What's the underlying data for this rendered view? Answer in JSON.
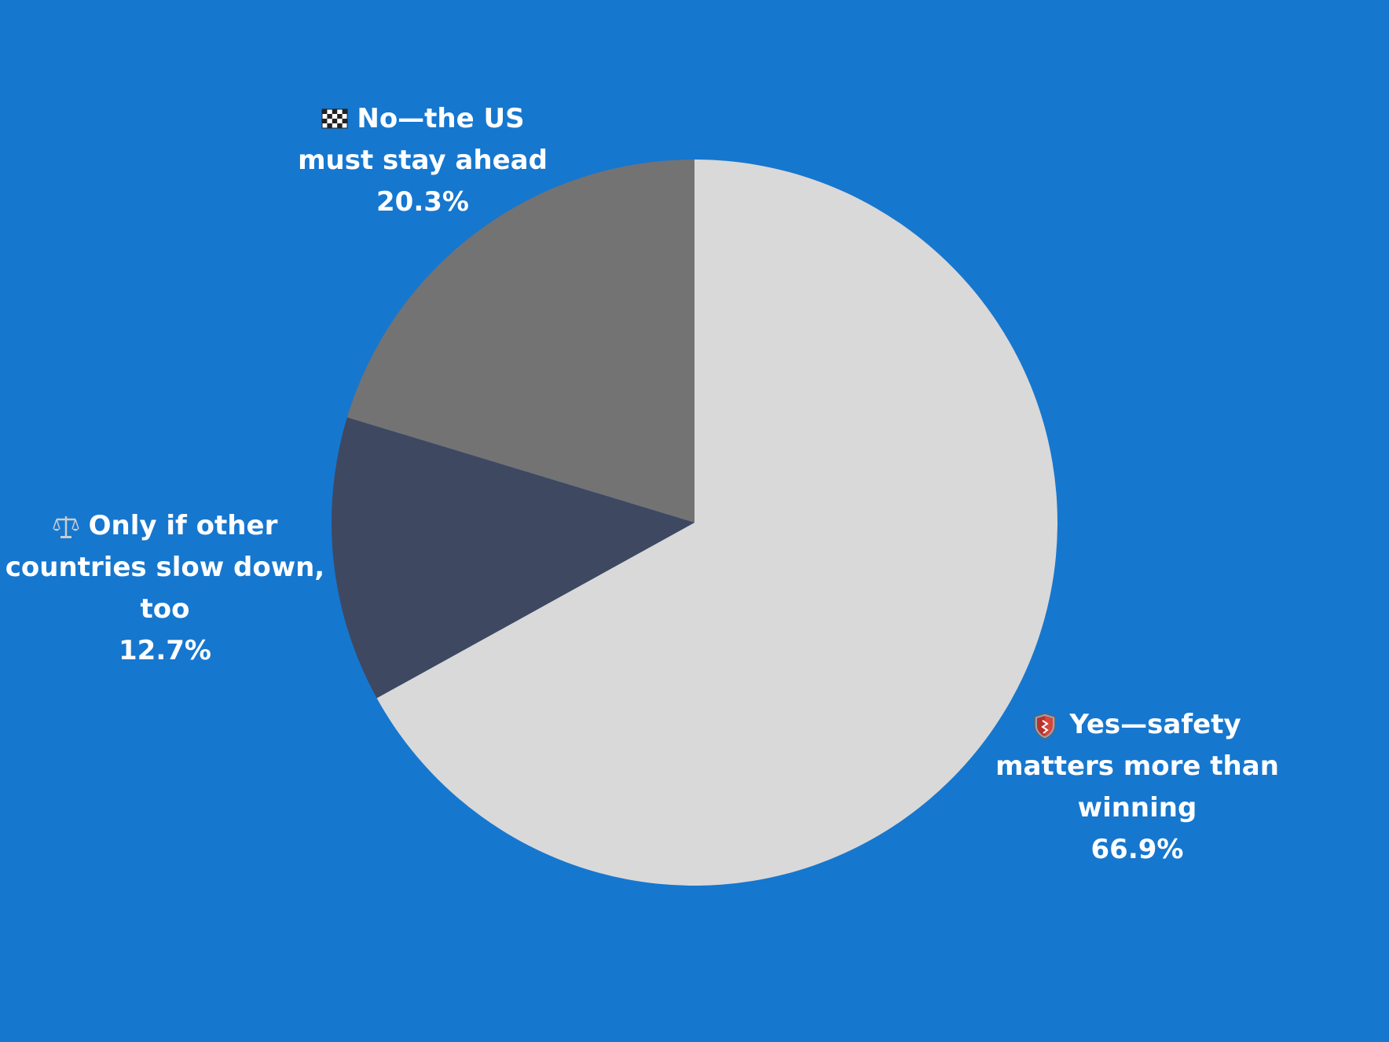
{
  "chart_data": {
    "type": "pie",
    "title": "",
    "start_angle_deg": 0,
    "direction": "clockwise",
    "slices": [
      {
        "label": "Yes—safety matters more than winning",
        "value": 66.9,
        "value_text": "66.9%",
        "color": "#D9D9D9",
        "icon": "shield-icon"
      },
      {
        "label": "Only if other countries slow down, too",
        "value": 12.7,
        "value_text": "12.7%",
        "color": "#3F4861",
        "icon": "balance-scale-icon"
      },
      {
        "label": "No—the US must stay ahead",
        "value": 20.3,
        "value_text": "20.3%",
        "color": "#737373",
        "icon": "checkered-flag-icon"
      }
    ]
  },
  "colors": {
    "background": "#1677CF",
    "label_text": "#FFFFFF"
  }
}
